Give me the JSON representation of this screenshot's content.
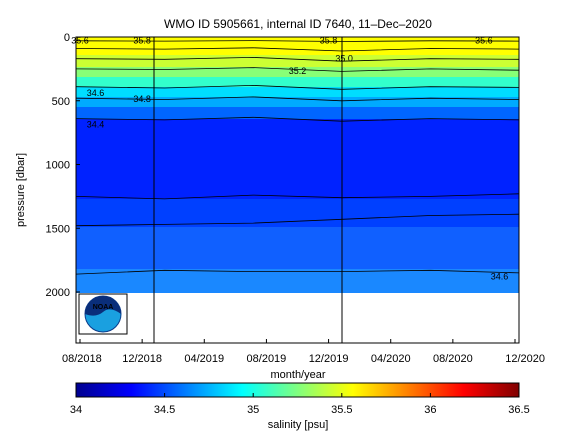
{
  "chart_data": [
    {
      "type": "heatmap",
      "title": "WMO ID 5905661, internal ID 7640, 11–Dec–2020",
      "xlabel": "month/year",
      "ylabel": "pressure [dbar]",
      "x_ticks": [
        "08/2018",
        "12/2018",
        "04/2019",
        "08/2019",
        "12/2019",
        "04/2020",
        "08/2020",
        "12/2020"
      ],
      "y_ticks": [
        "0",
        "500",
        "1000",
        "1500",
        "2000"
      ],
      "ylim": [
        2400,
        0
      ],
      "y_reversed": true,
      "year_boundaries": [
        "2019-01-01",
        "2020-01-01"
      ],
      "profile_bottom_dbar": 2000,
      "contour_labels": [
        {
          "text": "35.6",
          "date": "2018-08",
          "pressure": 20
        },
        {
          "text": "35.8",
          "date": "2018-12",
          "pressure": 20
        },
        {
          "text": "35.8",
          "date": "2019-12",
          "pressure": 20
        },
        {
          "text": "35.6",
          "date": "2020-10",
          "pressure": 20
        },
        {
          "text": "35.0",
          "date": "2020-01",
          "pressure": 160
        },
        {
          "text": "35.2",
          "date": "2019-10",
          "pressure": 260
        },
        {
          "text": "34.6",
          "date": "2018-09",
          "pressure": 430
        },
        {
          "text": "34.8",
          "date": "2018-12",
          "pressure": 480
        },
        {
          "text": "34.4",
          "date": "2018-09",
          "pressure": 680
        },
        {
          "text": "34.6",
          "date": "2020-11",
          "pressure": 1870
        }
      ],
      "contour_levels": [
        {
          "value": 35.6,
          "points": [
            [
              0,
              30
            ],
            [
              0.2,
              32
            ],
            [
              0.4,
              28
            ],
            [
              0.6,
              35
            ],
            [
              0.8,
              30
            ],
            [
              1,
              32
            ]
          ]
        },
        {
          "value": 35.4,
          "points": [
            [
              0,
              90
            ],
            [
              0.2,
              95
            ],
            [
              0.4,
              85
            ],
            [
              0.6,
              110
            ],
            [
              0.8,
              90
            ],
            [
              1,
              95
            ]
          ]
        },
        {
          "value": 35.2,
          "points": [
            [
              0,
              170
            ],
            [
              0.2,
              175
            ],
            [
              0.4,
              160
            ],
            [
              0.6,
              190
            ],
            [
              0.8,
              170
            ],
            [
              1,
              175
            ]
          ]
        },
        {
          "value": 35.0,
          "points": [
            [
              0,
              250
            ],
            [
              0.2,
              255
            ],
            [
              0.4,
              240
            ],
            [
              0.6,
              270
            ],
            [
              0.8,
              250
            ],
            [
              1,
              260
            ]
          ]
        },
        {
          "value": 34.8,
          "points": [
            [
              0,
              390
            ],
            [
              0.2,
              400
            ],
            [
              0.4,
              380
            ],
            [
              0.6,
              410
            ],
            [
              0.8,
              390
            ],
            [
              1,
              395
            ]
          ]
        },
        {
          "value": 34.6,
          "points": [
            [
              0,
              480
            ],
            [
              0.2,
              490
            ],
            [
              0.4,
              470
            ],
            [
              0.6,
              500
            ],
            [
              0.8,
              480
            ],
            [
              1,
              490
            ]
          ]
        },
        {
          "value": 34.4,
          "points": [
            [
              0,
              640
            ],
            [
              0.2,
              650
            ],
            [
              0.4,
              630
            ],
            [
              0.6,
              660
            ],
            [
              0.8,
              640
            ],
            [
              1,
              650
            ]
          ]
        },
        {
          "value": 34.5,
          "points": [
            [
              0,
              1250
            ],
            [
              0.2,
              1270
            ],
            [
              0.4,
              1240
            ],
            [
              0.6,
              1260
            ],
            [
              0.8,
              1250
            ],
            [
              1,
              1230
            ]
          ]
        },
        {
          "value": 34.55,
          "points": [
            [
              0,
              1480
            ],
            [
              0.2,
              1470
            ],
            [
              0.4,
              1460
            ],
            [
              0.6,
              1430
            ],
            [
              0.8,
              1400
            ],
            [
              1,
              1390
            ]
          ]
        },
        {
          "value": 34.6,
          "points": [
            [
              0,
              1860
            ],
            [
              0.2,
              1830
            ],
            [
              0.4,
              1840
            ],
            [
              0.6,
              1840
            ],
            [
              0.8,
              1830
            ],
            [
              1,
              1850
            ]
          ]
        }
      ]
    },
    {
      "type": "colorbar",
      "label": "salinity [psu]",
      "range": [
        34,
        36.5
      ],
      "ticks": [
        "34",
        "34.5",
        "35",
        "35.5",
        "36",
        "36.5"
      ],
      "colormap": "jet"
    }
  ],
  "logo": {
    "text": "NOAA"
  }
}
